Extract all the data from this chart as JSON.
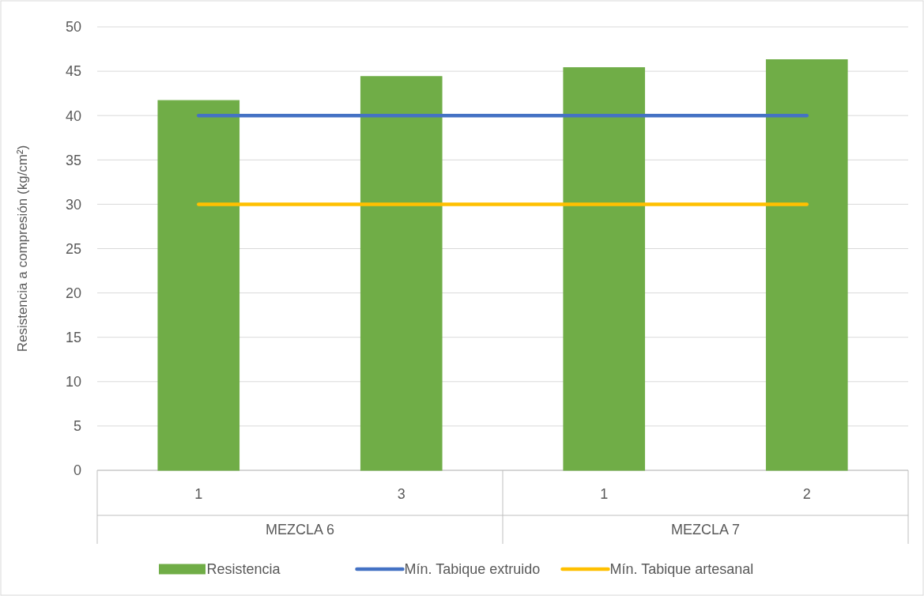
{
  "chart_data": {
    "type": "bar",
    "ylabel": "Resistencia a compresión (kg/cm²)",
    "categories": [
      "1",
      "3",
      "1",
      "2"
    ],
    "series": [
      {
        "name": "Resistencia",
        "color": "#70ad47",
        "values": [
          41.7,
          44.4,
          45.4,
          46.3
        ]
      },
      {
        "name": "Mín. Tabique extruido",
        "type": "line",
        "color": "#4472c4",
        "values": [
          40,
          40,
          40,
          40
        ]
      },
      {
        "name": "Mín. Tabique artesanal",
        "type": "line",
        "color": "#ffc000",
        "values": [
          30,
          30,
          30,
          30
        ]
      }
    ],
    "annotations": [
      "MEZCLA 6",
      "MEZCLA 7"
    ],
    "ylim": [
      0,
      50
    ],
    "yticks": [
      0,
      5,
      10,
      15,
      20,
      25,
      30,
      35,
      40,
      45,
      50
    ],
    "grid": "y",
    "legend": "bottom"
  }
}
